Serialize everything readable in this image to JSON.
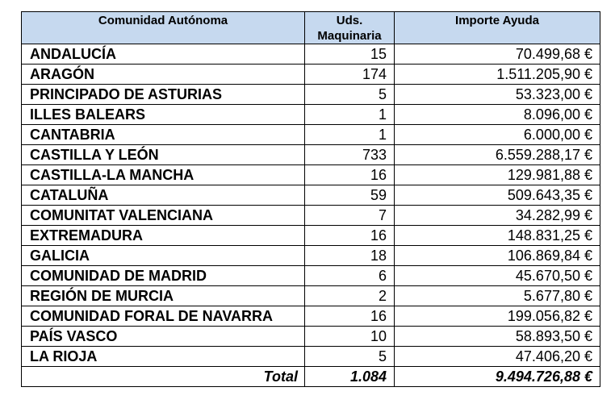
{
  "table": {
    "headers": {
      "region": "Comunidad Autónoma",
      "units_line1": "Uds.",
      "units_line2": "Maquinaria",
      "amount": "Importe Ayuda"
    },
    "rows": [
      {
        "region": "ANDALUCÍA",
        "units": "15",
        "amount": "70.499,68 €"
      },
      {
        "region": "ARAGÓN",
        "units": "174",
        "amount": "1.511.205,90 €"
      },
      {
        "region": "PRINCIPADO DE ASTURIAS",
        "units": "5",
        "amount": "53.323,00 €"
      },
      {
        "region": "ILLES BALEARS",
        "units": "1",
        "amount": "8.096,00 €"
      },
      {
        "region": "CANTABRIA",
        "units": "1",
        "amount": "6.000,00 €"
      },
      {
        "region": "CASTILLA Y LEÓN",
        "units": "733",
        "amount": "6.559.288,17 €"
      },
      {
        "region": "CASTILLA-LA MANCHA",
        "units": "16",
        "amount": "129.981,88 €"
      },
      {
        "region": "CATALUÑA",
        "units": "59",
        "amount": "509.643,35 €"
      },
      {
        "region": "COMUNITAT VALENCIANA",
        "units": "7",
        "amount": "34.282,99 €"
      },
      {
        "region": "EXTREMADURA",
        "units": "16",
        "amount": "148.831,25 €"
      },
      {
        "region": "GALICIA",
        "units": "18",
        "amount": "106.869,84 €"
      },
      {
        "region": "COMUNIDAD DE MADRID",
        "units": "6",
        "amount": "45.670,50 €"
      },
      {
        "region": "REGIÓN DE MURCIA",
        "units": "2",
        "amount": "5.677,80 €"
      },
      {
        "region": "COMUNIDAD FORAL DE NAVARRA",
        "units": "16",
        "amount": "199.056,82 €"
      },
      {
        "region": "PAÍS VASCO",
        "units": "10",
        "amount": "58.893,50 €"
      },
      {
        "region": "LA RIOJA",
        "units": "5",
        "amount": "47.406,20 €"
      }
    ],
    "total": {
      "label": "Total",
      "units": "1.084",
      "amount": "9.494.726,88 €"
    }
  },
  "colors": {
    "header_bg": "#c6d9ef",
    "border": "#000000"
  }
}
